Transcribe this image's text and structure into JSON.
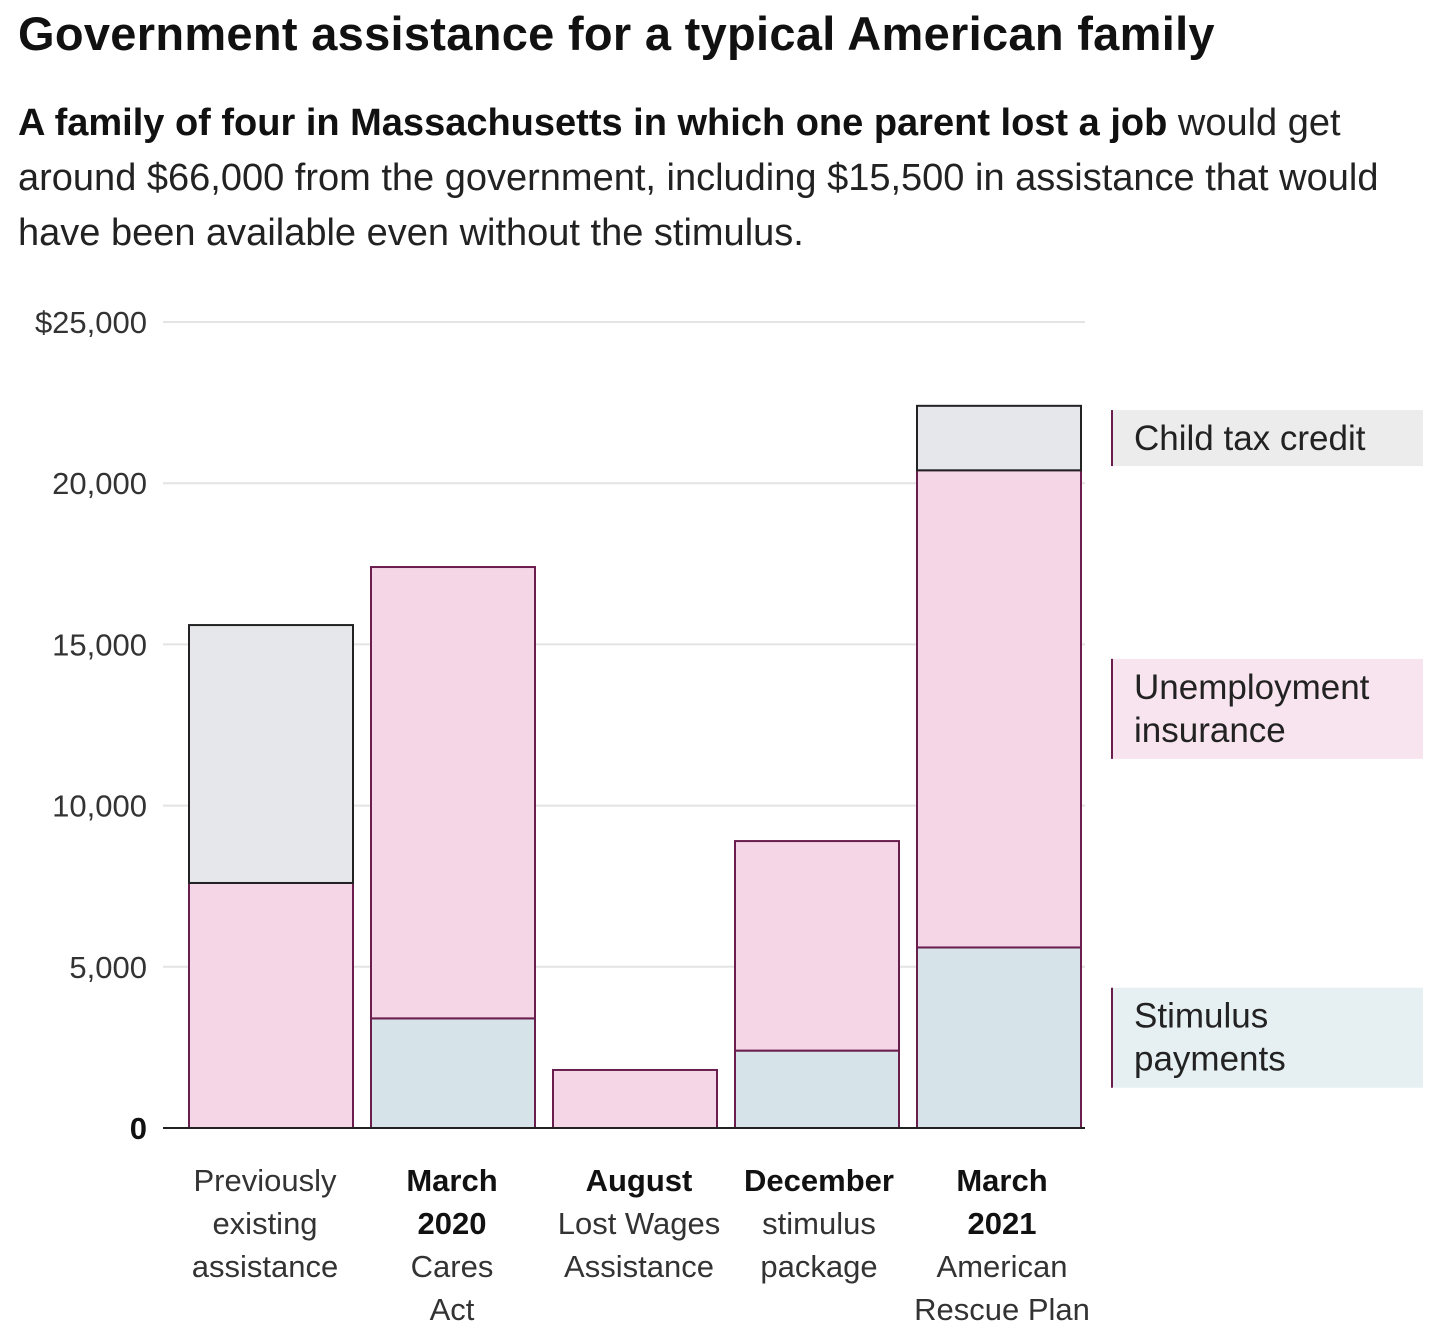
{
  "header": {
    "title": "Government assistance for a typical American family",
    "subtitle_bold": "A family of four in Massachusetts in which one parent lost a job",
    "subtitle_rest": " would get around $66,000 from the government, including $15,500 in assistance that would have been available even without the stimulus."
  },
  "chart_data": {
    "type": "bar",
    "stacked": true,
    "ylim": [
      0,
      25000
    ],
    "y_ticks": [
      {
        "value": 0,
        "label": "0"
      },
      {
        "value": 5000,
        "label": "5,000"
      },
      {
        "value": 10000,
        "label": "10,000"
      },
      {
        "value": 15000,
        "label": "15,000"
      },
      {
        "value": 20000,
        "label": "20,000"
      },
      {
        "value": 25000,
        "label": "$25,000"
      }
    ],
    "grid": true,
    "categories": [
      {
        "bold_lines": [],
        "lines": [
          "Previously",
          "existing",
          "assistance"
        ]
      },
      {
        "bold_lines": [
          "March",
          "2020"
        ],
        "lines": [
          "Cares",
          "Act"
        ]
      },
      {
        "bold_lines": [
          "August"
        ],
        "lines": [
          "Lost Wages",
          "Assistance"
        ]
      },
      {
        "bold_lines": [
          "December"
        ],
        "lines": [
          "stimulus",
          "package"
        ]
      },
      {
        "bold_lines": [
          "March",
          "2021"
        ],
        "lines": [
          "American",
          "Rescue Plan"
        ]
      }
    ],
    "series": [
      {
        "name": "Stimulus payments",
        "label_lines": [
          "Stimulus",
          "payments"
        ],
        "color": "#d6e3e8",
        "label_bg": "#e6eff2",
        "edge": "#6a1e4e",
        "values": [
          0,
          3400,
          0,
          2400,
          5600
        ]
      },
      {
        "name": "Unemployment insurance",
        "label_lines": [
          "Unemployment",
          "insurance"
        ],
        "color": "#f4d6e6",
        "label_bg": "#f7e4ee",
        "edge": "#6a1e4e",
        "values": [
          7600,
          14000,
          1800,
          6500,
          14800
        ]
      },
      {
        "name": "Child tax credit",
        "label_lines": [
          "Child tax credit"
        ],
        "color": "#e6e7ea",
        "label_bg": "#ececed",
        "edge": "#222222",
        "values": [
          8000,
          0,
          0,
          0,
          2000
        ]
      }
    ],
    "legend_placement": "right"
  }
}
